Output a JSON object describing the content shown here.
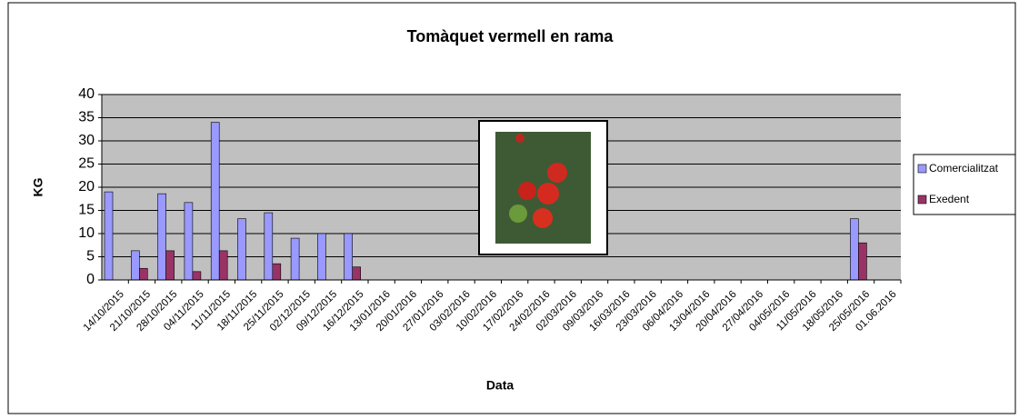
{
  "chart_data": {
    "type": "bar",
    "title": "Tomàquet vermell en rama",
    "x_label": "Data",
    "y_label": "KG",
    "categories": [
      "14/10/2015",
      "21/10/2015",
      "28/10/2015",
      "04/11/2015",
      "11/11/2015",
      "18/11/2015",
      "25/11/2015",
      "02/12/2015",
      "09/12/2015",
      "16/12/2015",
      "13/01/2016",
      "20/01/2016",
      "27/01/2016",
      "03/02/2016",
      "10/02/2016",
      "17/02/2016",
      "24/02/2016",
      "02/03/2016",
      "09/03/2016",
      "16/03/2016",
      "23/03/2016",
      "06/04/2016",
      "13/04/2016",
      "20/04/2016",
      "27/04/2016",
      "04/05/2016",
      "11/05/2016",
      "18/05/2016",
      "25/05/2016",
      "01.06.2016"
    ],
    "series": [
      {
        "name": "Comercialitzat",
        "color": "#9999ff",
        "values": [
          19,
          6.3,
          18.6,
          16.7,
          34,
          13.2,
          14.5,
          9,
          10,
          10,
          null,
          null,
          null,
          null,
          null,
          null,
          null,
          null,
          null,
          null,
          null,
          null,
          null,
          null,
          null,
          null,
          null,
          null,
          13.2,
          null
        ]
      },
      {
        "name": "Exedent",
        "color": "#993366",
        "values": [
          null,
          2.5,
          6.3,
          1.8,
          6.3,
          null,
          3.5,
          null,
          null,
          2.8,
          null,
          null,
          null,
          null,
          null,
          null,
          null,
          null,
          null,
          null,
          null,
          null,
          null,
          null,
          null,
          null,
          null,
          null,
          8,
          null
        ]
      }
    ],
    "ylim": [
      0,
      40
    ],
    "yticks": [
      0,
      5,
      10,
      15,
      20,
      25,
      30,
      35,
      40
    ],
    "grid": true
  }
}
